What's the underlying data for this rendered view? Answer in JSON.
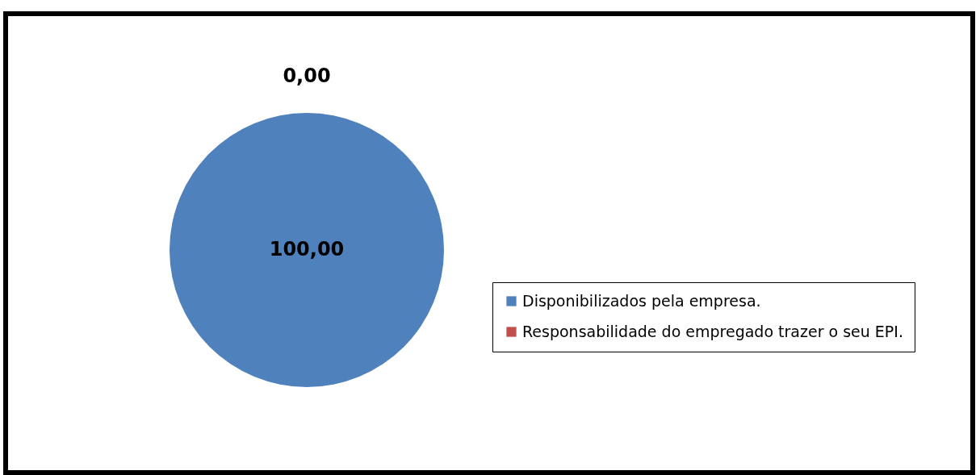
{
  "chart_data": {
    "type": "pie",
    "categories": [
      "Disponibilizados pela empresa.",
      "Responsabilidade do empregado trazer o seu EPI."
    ],
    "values": [
      100,
      0
    ],
    "colors": [
      "#4f81bd",
      "#c0504d"
    ],
    "value_labels": [
      "100,00",
      "0,00"
    ],
    "legend": "right"
  }
}
